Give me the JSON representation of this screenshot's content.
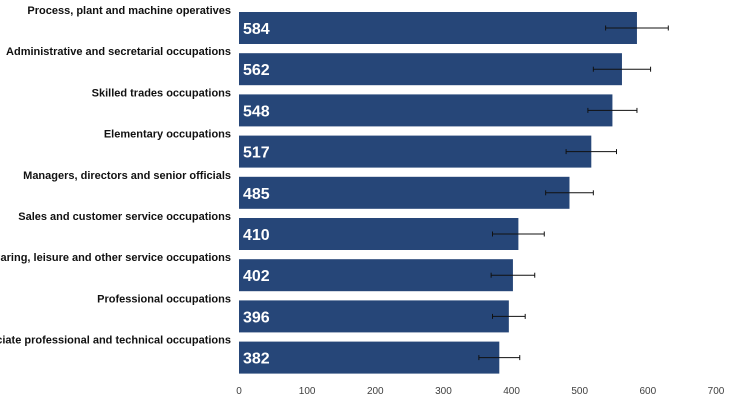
{
  "chart_data": {
    "type": "bar",
    "orientation": "horizontal",
    "title": "",
    "xlabel": "",
    "ylabel": "",
    "categories": [
      "Process, plant and machine operatives",
      "Administrative and secretarial occupations",
      "Skilled trades occupations",
      "Elementary occupations",
      "Managers, directors and senior officials",
      "Sales and customer service occupations",
      "Caring, leisure and other service occupations",
      "Professional occupations",
      "Associate professional and technical occupations"
    ],
    "values": [
      584,
      562,
      548,
      517,
      485,
      410,
      402,
      396,
      382
    ],
    "value_labels": [
      "584",
      "562",
      "548",
      "517",
      "485",
      "410",
      "402",
      "396",
      "382"
    ],
    "error_bars": [
      {
        "low": 538,
        "high": 630
      },
      {
        "low": 520,
        "high": 604
      },
      {
        "low": 512,
        "high": 584
      },
      {
        "low": 480,
        "high": 554
      },
      {
        "low": 450,
        "high": 520
      },
      {
        "low": 372,
        "high": 448
      },
      {
        "low": 370,
        "high": 434
      },
      {
        "low": 372,
        "high": 420
      },
      {
        "low": 352,
        "high": 412
      }
    ],
    "xlim": [
      0,
      700
    ],
    "xticks": [
      0,
      100,
      200,
      300,
      400,
      500,
      600,
      700
    ],
    "xtick_labels": [
      "0",
      "100",
      "200",
      "300",
      "400",
      "500",
      "600",
      "700"
    ],
    "grid": false,
    "legend": "none",
    "colors": {
      "bar": "#264678",
      "error_bar": "#111111",
      "label": "#ffffff"
    }
  }
}
